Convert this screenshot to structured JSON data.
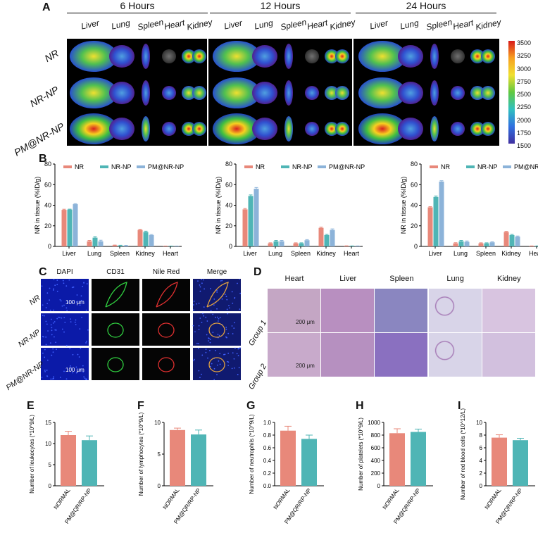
{
  "panels": {
    "a": "A",
    "b": "B",
    "c": "C",
    "d": "D",
    "e": "E",
    "f": "F",
    "g": "G",
    "h": "H",
    "i": "I"
  },
  "panelA": {
    "timepoints": [
      "6 Hours",
      "12 Hours",
      "24 Hours"
    ],
    "organs": [
      "Liver",
      "Lung",
      "Spleen",
      "Heart",
      "Kidney"
    ],
    "groups": [
      "NR",
      "NR-NP",
      "PM@NR-NP"
    ],
    "colorbar_ticks": [
      "3500",
      "3250",
      "3000",
      "2750",
      "2500",
      "2250",
      "2000",
      "1750",
      "1500"
    ]
  },
  "panelB": {
    "ylabel": "NR in tissue (%ID/g)",
    "legend": [
      "NR",
      "NR-NP",
      "PM@NR-NP"
    ],
    "colors": [
      "#e8887a",
      "#4fb5b5",
      "#8cb3d9"
    ]
  },
  "panelC": {
    "columns": [
      "DAPI",
      "CD31",
      "Nile Red",
      "Merge"
    ],
    "rows": [
      "NR",
      "NR-NP",
      "PM@NR-NP"
    ],
    "scale": "100 μm"
  },
  "panelD": {
    "columns": [
      "Heart",
      "Liver",
      "Spleen",
      "Lung",
      "Kidney"
    ],
    "rows": [
      "Group 1",
      "Group 2"
    ],
    "scale": "200 μm"
  },
  "panelBottom": {
    "categories": [
      "NORMAL",
      "PM@QR/RP-NP"
    ],
    "colors": [
      "#e8887a",
      "#4fb5b5"
    ]
  },
  "chart_data": [
    {
      "type": "bar",
      "ylabel": "NR in tissue (%ID/g)",
      "categories": [
        "Liver",
        "Lung",
        "Spleen",
        "Kidney",
        "Heart"
      ],
      "ylim": [
        0,
        80
      ],
      "yticks": [
        0,
        20,
        40,
        60,
        80
      ],
      "series": [
        {
          "name": "NR",
          "values": [
            35.5,
            5,
            1,
            16,
            0.3
          ],
          "err": [
            0.6,
            0.8,
            0.3,
            0.6,
            0.1
          ]
        },
        {
          "name": "NR-NP",
          "values": [
            35.8,
            8.5,
            0.8,
            14,
            0.3
          ],
          "err": [
            0.4,
            1.0,
            0.3,
            0.8,
            0.1
          ]
        },
        {
          "name": "PM@NR-NP",
          "values": [
            41,
            5,
            0.7,
            11,
            0.3
          ],
          "err": [
            0.5,
            1.0,
            0.3,
            0.6,
            0.1
          ]
        }
      ]
    },
    {
      "type": "bar",
      "ylabel": "NR in tissue (%ID/g)",
      "categories": [
        "Liver",
        "Lung",
        "Spleen",
        "Kidney",
        "Heart"
      ],
      "ylim": [
        0,
        80
      ],
      "yticks": [
        0,
        20,
        40,
        60,
        80
      ],
      "series": [
        {
          "name": "NR",
          "values": [
            36,
            3,
            3,
            18,
            0.5
          ],
          "err": [
            0.8,
            0.5,
            0.5,
            0.8,
            0.1
          ]
        },
        {
          "name": "NR-NP",
          "values": [
            49,
            5,
            3,
            11,
            0.4
          ],
          "err": [
            1.0,
            0.8,
            0.5,
            0.8,
            0.1
          ]
        },
        {
          "name": "PM@NR-NP",
          "values": [
            56,
            5,
            6,
            16,
            0.4
          ],
          "err": [
            1.2,
            0.8,
            0.6,
            1.0,
            0.1
          ]
        }
      ]
    },
    {
      "type": "bar",
      "ylabel": "NR in tissue (%ID/g)",
      "categories": [
        "Liver",
        "Lung",
        "Spleen",
        "Kidney",
        "Heart"
      ],
      "ylim": [
        0,
        80
      ],
      "yticks": [
        0,
        20,
        40,
        60,
        80
      ],
      "series": [
        {
          "name": "NR",
          "values": [
            38,
            3,
            3,
            14,
            0.4
          ],
          "err": [
            0.6,
            0.6,
            0.5,
            0.6,
            0.1
          ]
        },
        {
          "name": "NR-NP",
          "values": [
            48,
            5,
            3,
            11,
            0.4
          ],
          "err": [
            1.0,
            0.8,
            0.5,
            0.8,
            0.1
          ]
        },
        {
          "name": "PM@NR-NP",
          "values": [
            63,
            4.5,
            4,
            9.5,
            0.3
          ],
          "err": [
            0.8,
            0.8,
            0.5,
            0.6,
            0.1
          ]
        }
      ]
    },
    {
      "type": "bar",
      "ylabel": "Number of leukocytes  (*10^9/L)",
      "categories": [
        "NORMAL",
        "PM@QR/RP-NP"
      ],
      "values": [
        12,
        10.8
      ],
      "err": [
        0.9,
        1.0
      ],
      "ylim": [
        0,
        15
      ],
      "yticks": [
        0,
        5,
        10,
        15
      ]
    },
    {
      "type": "bar",
      "ylabel": "Number of lymphocytes  (*10^9/L)",
      "categories": [
        "NORMAL",
        "PM@QR/RP-NP"
      ],
      "values": [
        8.8,
        8.1
      ],
      "err": [
        0.3,
        0.7
      ],
      "ylim": [
        0,
        10
      ],
      "yticks": [
        0,
        5,
        10
      ]
    },
    {
      "type": "bar",
      "ylabel": "Number of neutrophils (*10^9/L)",
      "categories": [
        "NORMAL",
        "PM@QR/RP-NP"
      ],
      "values": [
        0.87,
        0.74
      ],
      "err": [
        0.07,
        0.06
      ],
      "ylim": [
        0,
        1.0
      ],
      "yticks": [
        0,
        0.2,
        0.4,
        0.6,
        0.8,
        1.0
      ]
    },
    {
      "type": "bar",
      "ylabel": "Number of platelets  (*10^9/L)",
      "categories": [
        "NORMAL",
        "PM@QR/RP-NP"
      ],
      "values": [
        830,
        850
      ],
      "err": [
        70,
        45
      ],
      "ylim": [
        0,
        1000
      ],
      "yticks": [
        0,
        200,
        400,
        600,
        800,
        1000
      ]
    },
    {
      "type": "bar",
      "ylabel": "Number of red blood cells (*10^12/L)",
      "categories": [
        "NORMAL",
        "PM@QR/RP-NP"
      ],
      "values": [
        7.6,
        7.2
      ],
      "err": [
        0.45,
        0.3
      ],
      "ylim": [
        0,
        10
      ],
      "yticks": [
        0,
        2,
        4,
        6,
        8,
        10
      ]
    }
  ]
}
